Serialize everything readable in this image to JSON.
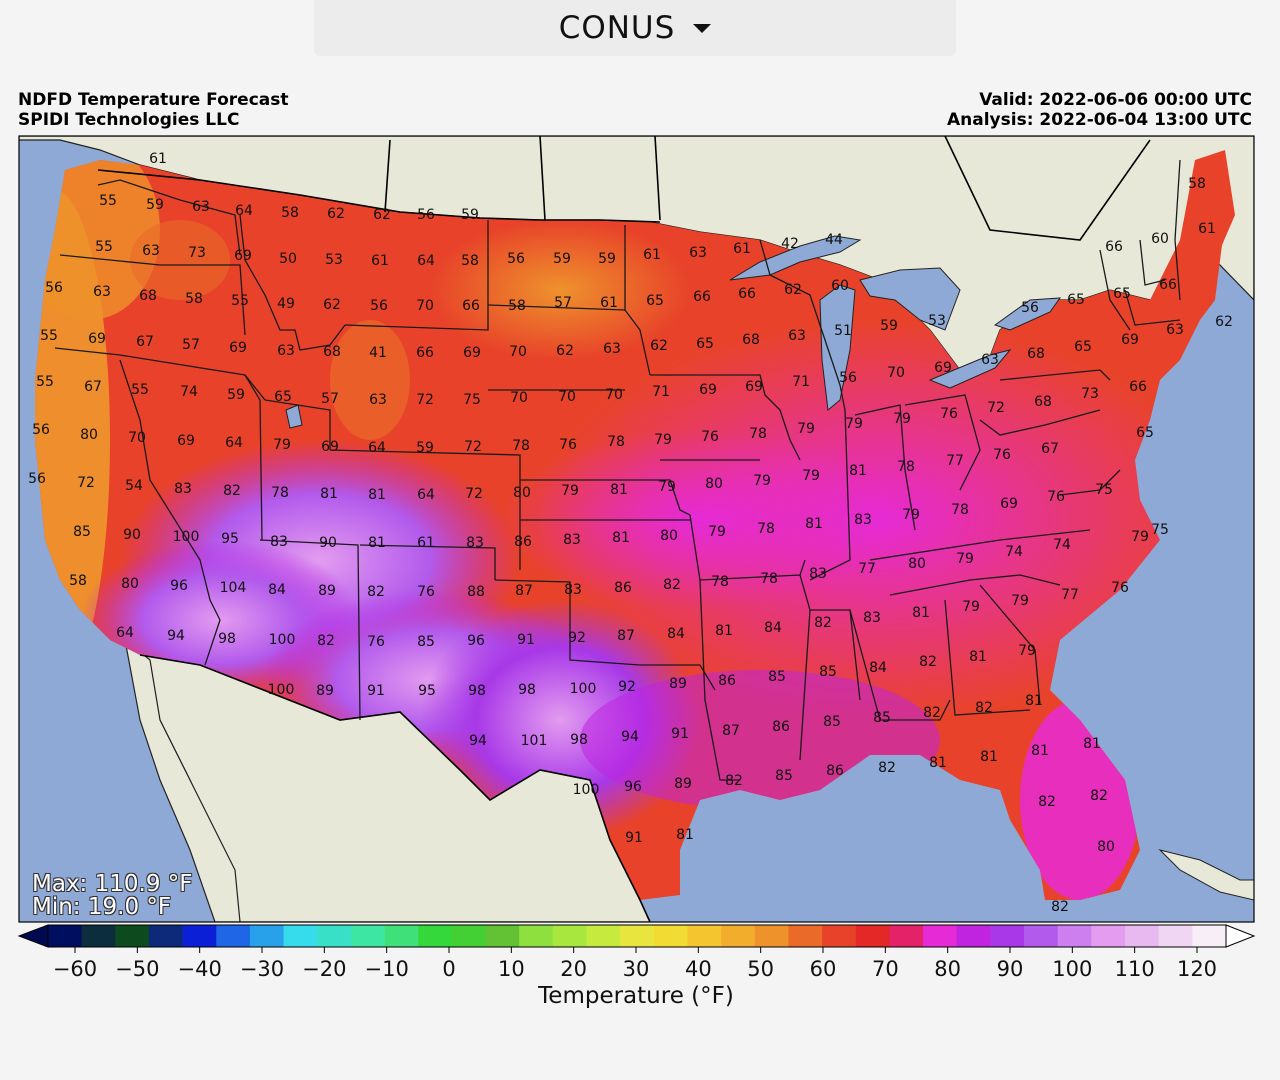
{
  "region_selector": {
    "value": "CONUS"
  },
  "header": {
    "title": "NDFD Temperature Forecast",
    "provider": "SPIDI Technologies LLC",
    "valid": "Valid: 2022-06-06 00:00 UTC",
    "analysis": "Analysis: 2022-06-04 13:00 UTC"
  },
  "stats": {
    "max": "Max: 110.9 °F",
    "min": "Min: 19.0 °F"
  },
  "colorbar": {
    "label": "Temperature (°F)",
    "ticks": [
      "−60",
      "−50",
      "−40",
      "−30",
      "−20",
      "−10",
      "0",
      "10",
      "20",
      "30",
      "40",
      "50",
      "60",
      "70",
      "80",
      "90",
      "100",
      "110",
      "120"
    ],
    "colors": [
      "#000e5f",
      "#0b2d3d",
      "#0d4b1e",
      "#0d2a7a",
      "#0a1fd6",
      "#1f66e6",
      "#28a0ea",
      "#36dcec",
      "#39e0c8",
      "#3ee6a3",
      "#3fe07a",
      "#34d83a",
      "#42d035",
      "#62c234",
      "#8ee03e",
      "#a8e83e",
      "#c7ea3e",
      "#e8e63e",
      "#f2dc34",
      "#f4c52e",
      "#f2ad2c",
      "#ee922c",
      "#ea6a2a",
      "#e8432a",
      "#e42828",
      "#e42268",
      "#e62ad6",
      "#c024e0",
      "#a838e8",
      "#b25aec",
      "#cd7ff0",
      "#e39cf0",
      "#e8b8f0",
      "#f0d6f3",
      "#f8eef8"
    ],
    "min_value": -60,
    "max_value": 120
  },
  "map": {
    "colors": {
      "ocean": "#8fa9d6",
      "land": "#e8e8d8",
      "lake": "#8fa9d6"
    },
    "temperature_labels": [
      [
        "61",
        158,
        158
      ],
      [
        "55",
        108,
        200
      ],
      [
        "59",
        155,
        204
      ],
      [
        "63",
        201,
        206
      ],
      [
        "64",
        244,
        210
      ],
      [
        "58",
        290,
        212
      ],
      [
        "62",
        336,
        213
      ],
      [
        "62",
        382,
        214
      ],
      [
        "56",
        426,
        214
      ],
      [
        "59",
        470,
        214
      ],
      [
        "55",
        104,
        246
      ],
      [
        "63",
        151,
        250
      ],
      [
        "73",
        197,
        252
      ],
      [
        "69",
        243,
        255
      ],
      [
        "50",
        288,
        258
      ],
      [
        "53",
        334,
        259
      ],
      [
        "61",
        380,
        260
      ],
      [
        "64",
        426,
        260
      ],
      [
        "58",
        470,
        260
      ],
      [
        "56",
        516,
        258
      ],
      [
        "59",
        562,
        258
      ],
      [
        "59",
        607,
        258
      ],
      [
        "61",
        652,
        254
      ],
      [
        "63",
        698,
        252
      ],
      [
        "61",
        742,
        248
      ],
      [
        "42",
        790,
        243
      ],
      [
        "44",
        834,
        239
      ],
      [
        "66",
        1114,
        246
      ],
      [
        "60",
        1160,
        238
      ],
      [
        "58",
        1197,
        183
      ],
      [
        "61",
        1207,
        228
      ],
      [
        "56",
        54,
        287
      ],
      [
        "63",
        102,
        291
      ],
      [
        "68",
        148,
        295
      ],
      [
        "58",
        194,
        298
      ],
      [
        "55",
        240,
        300
      ],
      [
        "49",
        286,
        303
      ],
      [
        "62",
        332,
        304
      ],
      [
        "56",
        379,
        305
      ],
      [
        "70",
        425,
        305
      ],
      [
        "66",
        471,
        305
      ],
      [
        "58",
        517,
        305
      ],
      [
        "57",
        563,
        302
      ],
      [
        "61",
        609,
        302
      ],
      [
        "65",
        655,
        300
      ],
      [
        "66",
        702,
        296
      ],
      [
        "66",
        747,
        293
      ],
      [
        "62",
        793,
        289
      ],
      [
        "60",
        840,
        285
      ],
      [
        "56",
        1030,
        307
      ],
      [
        "65",
        1076,
        299
      ],
      [
        "65",
        1122,
        293
      ],
      [
        "66",
        1168,
        284
      ],
      [
        "55",
        49,
        335
      ],
      [
        "69",
        97,
        338
      ],
      [
        "67",
        145,
        341
      ],
      [
        "57",
        191,
        344
      ],
      [
        "69",
        238,
        347
      ],
      [
        "63",
        286,
        350
      ],
      [
        "68",
        332,
        351
      ],
      [
        "41",
        378,
        352
      ],
      [
        "66",
        425,
        352
      ],
      [
        "69",
        472,
        352
      ],
      [
        "70",
        518,
        351
      ],
      [
        "62",
        565,
        350
      ],
      [
        "63",
        612,
        348
      ],
      [
        "62",
        659,
        345
      ],
      [
        "65",
        705,
        343
      ],
      [
        "68",
        751,
        339
      ],
      [
        "63",
        797,
        335
      ],
      [
        "51",
        843,
        330
      ],
      [
        "59",
        889,
        325
      ],
      [
        "53",
        937,
        320
      ],
      [
        "68",
        1036,
        353
      ],
      [
        "65",
        1083,
        346
      ],
      [
        "69",
        1130,
        339
      ],
      [
        "63",
        1175,
        329
      ],
      [
        "62",
        1224,
        321
      ],
      [
        "55",
        45,
        381
      ],
      [
        "67",
        93,
        386
      ],
      [
        "55",
        140,
        389
      ],
      [
        "74",
        189,
        391
      ],
      [
        "59",
        236,
        394
      ],
      [
        "65",
        283,
        396
      ],
      [
        "57",
        330,
        398
      ],
      [
        "63",
        378,
        399
      ],
      [
        "72",
        425,
        399
      ],
      [
        "75",
        472,
        399
      ],
      [
        "70",
        519,
        397
      ],
      [
        "70",
        567,
        396
      ],
      [
        "70",
        614,
        394
      ],
      [
        "71",
        661,
        391
      ],
      [
        "69",
        708,
        389
      ],
      [
        "69",
        754,
        386
      ],
      [
        "71",
        801,
        381
      ],
      [
        "56",
        848,
        377
      ],
      [
        "70",
        896,
        372
      ],
      [
        "69",
        943,
        367
      ],
      [
        "63",
        990,
        359
      ],
      [
        "68",
        1043,
        401
      ],
      [
        "73",
        1090,
        393
      ],
      [
        "66",
        1138,
        386
      ],
      [
        "56",
        41,
        429
      ],
      [
        "80",
        89,
        434
      ],
      [
        "70",
        137,
        437
      ],
      [
        "69",
        186,
        440
      ],
      [
        "64",
        234,
        442
      ],
      [
        "79",
        282,
        444
      ],
      [
        "69",
        330,
        446
      ],
      [
        "64",
        377,
        447
      ],
      [
        "59",
        425,
        447
      ],
      [
        "72",
        473,
        446
      ],
      [
        "78",
        521,
        445
      ],
      [
        "76",
        568,
        444
      ],
      [
        "78",
        616,
        441
      ],
      [
        "79",
        663,
        439
      ],
      [
        "76",
        710,
        436
      ],
      [
        "78",
        758,
        433
      ],
      [
        "79",
        806,
        428
      ],
      [
        "79",
        854,
        423
      ],
      [
        "79",
        902,
        418
      ],
      [
        "76",
        949,
        413
      ],
      [
        "72",
        996,
        407
      ],
      [
        "67",
        1050,
        448
      ],
      [
        "65",
        1145,
        432
      ],
      [
        "56",
        37,
        478
      ],
      [
        "72",
        86,
        482
      ],
      [
        "54",
        134,
        485
      ],
      [
        "83",
        183,
        488
      ],
      [
        "82",
        232,
        490
      ],
      [
        "78",
        280,
        492
      ],
      [
        "81",
        329,
        493
      ],
      [
        "81",
        377,
        494
      ],
      [
        "64",
        426,
        494
      ],
      [
        "72",
        474,
        493
      ],
      [
        "80",
        522,
        492
      ],
      [
        "79",
        570,
        490
      ],
      [
        "81",
        619,
        489
      ],
      [
        "79",
        667,
        486
      ],
      [
        "80",
        714,
        483
      ],
      [
        "79",
        762,
        480
      ],
      [
        "79",
        811,
        475
      ],
      [
        "81",
        858,
        470
      ],
      [
        "78",
        906,
        466
      ],
      [
        "77",
        955,
        460
      ],
      [
        "76",
        1002,
        454
      ],
      [
        "85",
        82,
        531
      ],
      [
        "90",
        132,
        534
      ],
      [
        "100",
        186,
        536
      ],
      [
        "95",
        230,
        538
      ],
      [
        "83",
        279,
        541
      ],
      [
        "90",
        328,
        542
      ],
      [
        "81",
        377,
        542
      ],
      [
        "61",
        426,
        542
      ],
      [
        "83",
        475,
        542
      ],
      [
        "86",
        523,
        541
      ],
      [
        "83",
        572,
        539
      ],
      [
        "81",
        621,
        537
      ],
      [
        "80",
        669,
        535
      ],
      [
        "79",
        717,
        531
      ],
      [
        "78",
        766,
        528
      ],
      [
        "81",
        814,
        523
      ],
      [
        "83",
        863,
        519
      ],
      [
        "79",
        911,
        514
      ],
      [
        "78",
        960,
        509
      ],
      [
        "69",
        1009,
        503
      ],
      [
        "76",
        1056,
        496
      ],
      [
        "75",
        1104,
        489
      ],
      [
        "79",
        1140,
        536
      ],
      [
        "75",
        1160,
        529
      ],
      [
        "58",
        78,
        580
      ],
      [
        "80",
        130,
        583
      ],
      [
        "96",
        179,
        585
      ],
      [
        "104",
        233,
        587
      ],
      [
        "84",
        277,
        589
      ],
      [
        "89",
        327,
        590
      ],
      [
        "82",
        376,
        591
      ],
      [
        "76",
        426,
        591
      ],
      [
        "88",
        476,
        591
      ],
      [
        "87",
        524,
        590
      ],
      [
        "83",
        573,
        589
      ],
      [
        "86",
        623,
        587
      ],
      [
        "82",
        672,
        584
      ],
      [
        "78",
        720,
        581
      ],
      [
        "78",
        769,
        578
      ],
      [
        "83",
        818,
        573
      ],
      [
        "77",
        867,
        568
      ],
      [
        "80",
        917,
        563
      ],
      [
        "79",
        965,
        558
      ],
      [
        "74",
        1014,
        551
      ],
      [
        "74",
        1062,
        544
      ],
      [
        "64",
        125,
        632
      ],
      [
        "94",
        176,
        635
      ],
      [
        "98",
        227,
        638
      ],
      [
        "100",
        282,
        639
      ],
      [
        "82",
        326,
        640
      ],
      [
        "76",
        376,
        641
      ],
      [
        "85",
        426,
        641
      ],
      [
        "96",
        476,
        640
      ],
      [
        "91",
        526,
        639
      ],
      [
        "92",
        577,
        637
      ],
      [
        "87",
        626,
        635
      ],
      [
        "84",
        676,
        633
      ],
      [
        "81",
        724,
        630
      ],
      [
        "84",
        773,
        627
      ],
      [
        "82",
        823,
        622
      ],
      [
        "83",
        872,
        617
      ],
      [
        "81",
        921,
        612
      ],
      [
        "79",
        971,
        606
      ],
      [
        "79",
        1020,
        600
      ],
      [
        "77",
        1070,
        594
      ],
      [
        "76",
        1120,
        587
      ],
      [
        "100",
        281,
        689
      ],
      [
        "89",
        325,
        690
      ],
      [
        "91",
        376,
        690
      ],
      [
        "95",
        427,
        690
      ],
      [
        "98",
        477,
        690
      ],
      [
        "98",
        527,
        689
      ],
      [
        "100",
        583,
        688
      ],
      [
        "92",
        627,
        686
      ],
      [
        "89",
        678,
        683
      ],
      [
        "86",
        727,
        680
      ],
      [
        "85",
        777,
        676
      ],
      [
        "85",
        828,
        671
      ],
      [
        "84",
        878,
        667
      ],
      [
        "82",
        928,
        661
      ],
      [
        "81",
        978,
        656
      ],
      [
        "79",
        1027,
        650
      ],
      [
        "94",
        478,
        740
      ],
      [
        "101",
        534,
        740
      ],
      [
        "98",
        579,
        739
      ],
      [
        "94",
        630,
        736
      ],
      [
        "91",
        680,
        733
      ],
      [
        "87",
        731,
        730
      ],
      [
        "86",
        781,
        726
      ],
      [
        "85",
        832,
        721
      ],
      [
        "85",
        882,
        717
      ],
      [
        "82",
        932,
        712
      ],
      [
        "82",
        984,
        707
      ],
      [
        "81",
        1034,
        700
      ],
      [
        "100",
        586,
        789
      ],
      [
        "96",
        633,
        786
      ],
      [
        "89",
        683,
        783
      ],
      [
        "82",
        734,
        780
      ],
      [
        "85",
        784,
        775
      ],
      [
        "86",
        835,
        770
      ],
      [
        "82",
        887,
        767
      ],
      [
        "81",
        938,
        762
      ],
      [
        "81",
        989,
        756
      ],
      [
        "81",
        1040,
        750
      ],
      [
        "81",
        1092,
        743
      ],
      [
        "91",
        634,
        837
      ],
      [
        "81",
        685,
        834
      ],
      [
        "82",
        1047,
        801
      ],
      [
        "82",
        1099,
        795
      ],
      [
        "80",
        1106,
        846
      ],
      [
        "82",
        1060,
        906
      ]
    ]
  }
}
